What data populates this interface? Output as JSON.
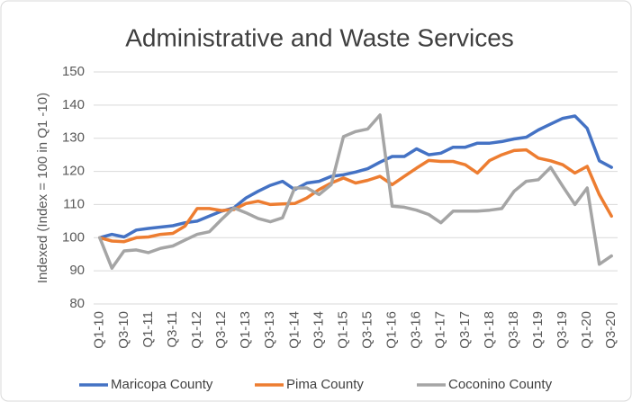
{
  "chart_data": {
    "type": "line",
    "title": "Administrative and Waste Services",
    "y_label": "Indexed (Index = 100 in Q1 -10)",
    "categories": [
      "Q1-10",
      null,
      "Q3-10",
      null,
      "Q1-11",
      null,
      "Q3-11",
      null,
      "Q1-12",
      null,
      "Q3-12",
      null,
      "Q1-13",
      null,
      "Q3-13",
      null,
      "Q1-14",
      null,
      "Q3-14",
      null,
      "Q1-15",
      null,
      "Q3-15",
      null,
      "Q1-16",
      null,
      "Q3-16",
      null,
      "Q1-17",
      null,
      "Q3-17",
      null,
      "Q1-18",
      null,
      "Q3-18",
      null,
      "Q1-19",
      null,
      "Q3-19",
      null,
      "Q1-20",
      null,
      "Q3-20"
    ],
    "series": [
      {
        "name": "Maricopa County",
        "color": "#4472c4",
        "values": [
          100,
          101,
          100.2,
          102.3,
          102.8,
          103.2,
          103.6,
          104.5,
          105,
          106.5,
          108,
          109,
          112,
          114,
          115.8,
          117,
          114.5,
          116.5,
          117,
          118.5,
          119,
          119.8,
          120.8,
          122.8,
          124.5,
          124.5,
          126.8,
          125,
          125.5,
          127.3,
          127.3,
          128.5,
          128.5,
          129,
          129.8,
          130.3,
          132.5,
          134.3,
          136,
          136.7,
          133,
          123.2,
          121.2
        ]
      },
      {
        "name": "Pima County",
        "color": "#ed7d31",
        "values": [
          100,
          99,
          98.8,
          100,
          100.2,
          101,
          101.3,
          103.5,
          108.8,
          108.8,
          108.2,
          108.5,
          110.3,
          111,
          110,
          110.2,
          110.3,
          112,
          114.5,
          116.5,
          118,
          116.5,
          117.3,
          118.5,
          116,
          118.5,
          121,
          123.3,
          123,
          123,
          122,
          119.5,
          123.3,
          125,
          126.3,
          126.5,
          124,
          123.2,
          122,
          119.5,
          121.5,
          113,
          106.5
        ]
      },
      {
        "name": "Coconino County",
        "color": "#a5a5a5",
        "values": [
          100,
          90.8,
          96,
          96.3,
          95.5,
          96.8,
          97.5,
          99.3,
          101,
          101.8,
          105.5,
          109,
          107.5,
          105.8,
          104.8,
          106,
          115,
          115,
          113,
          116,
          130.5,
          132,
          132.8,
          137,
          109.5,
          109.2,
          108.3,
          107,
          104.5,
          108,
          108,
          108,
          108.3,
          108.8,
          114,
          117,
          117.5,
          121.2,
          115.5,
          110,
          115,
          92,
          94.5
        ]
      }
    ],
    "ylim": [
      80,
      150
    ],
    "yticks": [
      80,
      90,
      100,
      110,
      120,
      130,
      140,
      150
    ],
    "grid": true,
    "legend": "bottom"
  }
}
